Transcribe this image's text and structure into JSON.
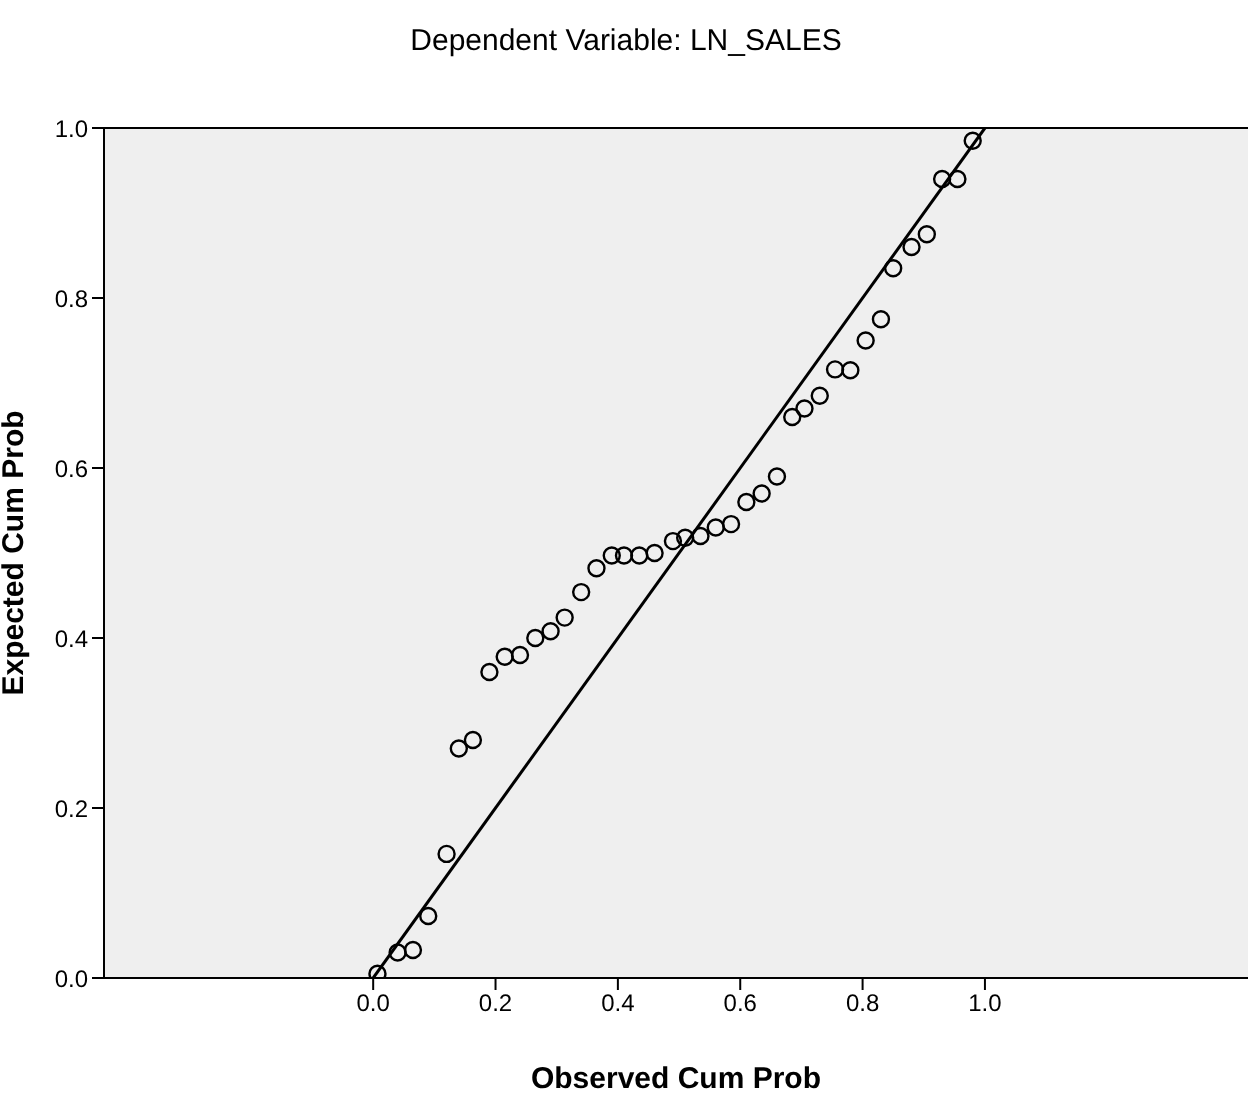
{
  "chart_data": {
    "type": "scatter",
    "title": "Dependent Variable: LN_SALES",
    "xlabel": "Observed Cum Prob",
    "ylabel": "Expected Cum Prob",
    "xlim": [
      -0.44,
      1.43
    ],
    "ylim": [
      0,
      1
    ],
    "xticks": [
      {
        "value": 0,
        "label": "0.0"
      },
      {
        "value": 0.2,
        "label": "0.2"
      },
      {
        "value": 0.4,
        "label": "0.4"
      },
      {
        "value": 0.6,
        "label": "0.6"
      },
      {
        "value": 0.8,
        "label": "0.8"
      },
      {
        "value": 1,
        "label": "1.0"
      }
    ],
    "yticks": [
      {
        "value": 0,
        "label": "0.0"
      },
      {
        "value": 0.2,
        "label": "0.2"
      },
      {
        "value": 0.4,
        "label": "0.4"
      },
      {
        "value": 0.6,
        "label": "0.6"
      },
      {
        "value": 0.8,
        "label": "0.8"
      },
      {
        "value": 1,
        "label": "1.0"
      }
    ],
    "series": [
      {
        "marker": "circle",
        "color": "#000000",
        "x": [
          0.007,
          0.04,
          0.065,
          0.09,
          0.12,
          0.14,
          0.163,
          0.19,
          0.215,
          0.24,
          0.265,
          0.29,
          0.313,
          0.34,
          0.365,
          0.39,
          0.41,
          0.435,
          0.46,
          0.49,
          0.51,
          0.535,
          0.56,
          0.585,
          0.61,
          0.635,
          0.66,
          0.685,
          0.705,
          0.73,
          0.755,
          0.78,
          0.805,
          0.83,
          0.85,
          0.88,
          0.905,
          0.93,
          0.955,
          0.98
        ],
        "values": [
          0.005,
          0.03,
          0.033,
          0.073,
          0.146,
          0.27,
          0.28,
          0.36,
          0.378,
          0.38,
          0.4,
          0.408,
          0.424,
          0.454,
          0.482,
          0.497,
          0.497,
          0.497,
          0.5,
          0.514,
          0.518,
          0.52,
          0.53,
          0.534,
          0.56,
          0.57,
          0.59,
          0.66,
          0.67,
          0.685,
          0.716,
          0.715,
          0.75,
          0.775,
          0.835,
          0.86,
          0.875,
          0.94,
          0.94,
          0.985
        ]
      },
      {
        "type": "line",
        "color": "#000000",
        "x": [
          0,
          1
        ],
        "values": [
          0,
          1
        ],
        "line_style": "solid"
      }
    ]
  }
}
